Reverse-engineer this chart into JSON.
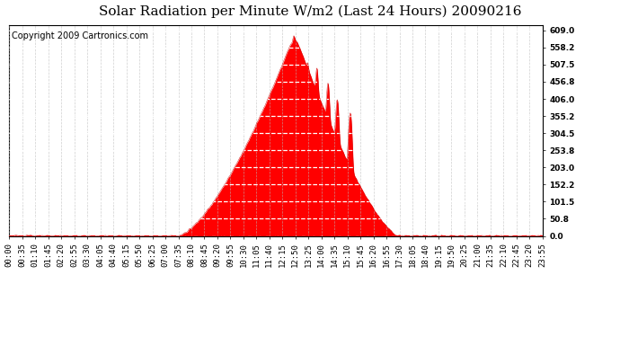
{
  "title": "Solar Radiation per Minute W/m2 (Last 24 Hours) 20090216",
  "copyright": "Copyright 2009 Cartronics.com",
  "y_ticks": [
    0.0,
    50.8,
    101.5,
    152.2,
    203.0,
    253.8,
    304.5,
    355.2,
    406.0,
    456.8,
    507.5,
    558.2,
    609.0
  ],
  "y_min": 0.0,
  "y_max": 609.0,
  "fill_color": "#FF0000",
  "line_color": "#CC0000",
  "bg_color": "#FFFFFF",
  "plot_bg_color": "#FFFFFF",
  "grid_h_color": "#FFFFFF",
  "grid_v_color": "#BBBBBB",
  "dashed_line_color": "#FF0000",
  "title_fontsize": 11,
  "copyright_fontsize": 7,
  "tick_label_fontsize": 6.5,
  "x_tick_labels": [
    "00:00",
    "00:35",
    "01:10",
    "01:45",
    "02:20",
    "02:55",
    "03:30",
    "04:05",
    "04:40",
    "05:15",
    "05:50",
    "06:25",
    "07:00",
    "07:35",
    "08:10",
    "08:45",
    "09:20",
    "09:55",
    "10:30",
    "11:05",
    "11:40",
    "12:15",
    "12:50",
    "13:25",
    "14:00",
    "14:35",
    "15:10",
    "15:45",
    "16:20",
    "16:55",
    "17:30",
    "18:05",
    "18:40",
    "19:15",
    "19:50",
    "20:25",
    "21:00",
    "21:35",
    "22:10",
    "22:45",
    "23:20",
    "23:55"
  ],
  "n_points": 1440,
  "sunrise": 455,
  "sunset": 1050,
  "peak_minute": 770,
  "peak_value": 600
}
